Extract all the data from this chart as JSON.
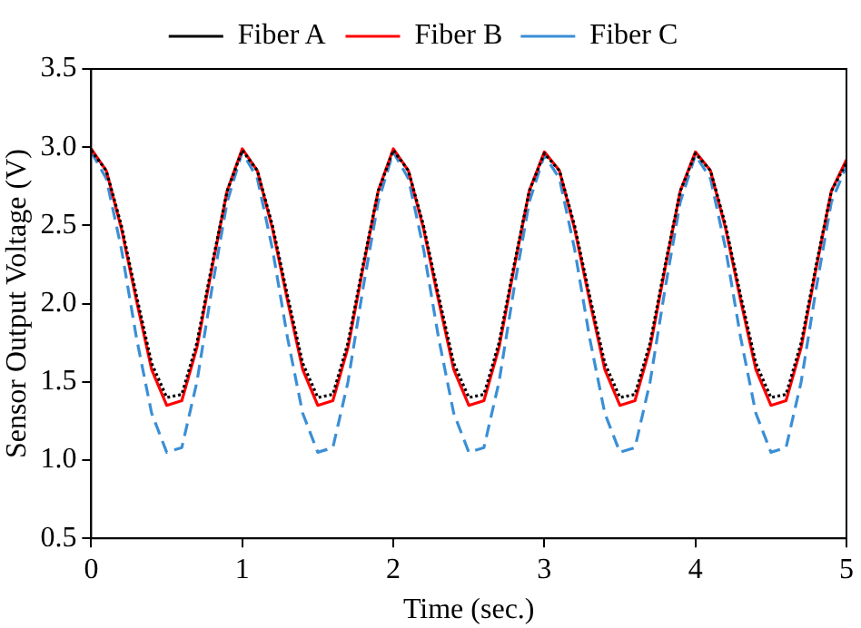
{
  "chart_data": {
    "type": "line",
    "xlabel": "Time (sec.)",
    "ylabel": "Sensor Output Voltage (V)",
    "x": [
      0,
      0.1,
      0.2,
      0.3,
      0.4,
      0.5,
      0.6,
      0.7,
      0.8,
      0.9,
      1,
      1.1,
      1.2,
      1.3,
      1.4,
      1.5,
      1.6,
      1.7,
      1.8,
      1.9,
      2,
      2.1,
      2.2,
      2.3,
      2.4,
      2.5,
      2.6,
      2.7,
      2.8,
      2.9,
      3,
      3.1,
      3.2,
      3.3,
      3.4,
      3.5,
      3.6,
      3.7,
      3.8,
      3.9,
      4,
      4.1,
      4.2,
      4.3,
      4.4,
      4.5,
      4.6,
      4.7,
      4.8,
      4.9,
      5
    ],
    "series": [
      {
        "name": "Fiber A",
        "color": "#000000",
        "line_style": "dotted",
        "values": [
          2.98,
          2.85,
          2.5,
          2.05,
          1.62,
          1.4,
          1.42,
          1.75,
          2.25,
          2.72,
          2.98,
          2.85,
          2.5,
          2.05,
          1.62,
          1.4,
          1.42,
          1.75,
          2.25,
          2.72,
          2.98,
          2.85,
          2.5,
          2.05,
          1.62,
          1.4,
          1.42,
          1.75,
          2.25,
          2.72,
          2.96,
          2.85,
          2.5,
          2.05,
          1.62,
          1.4,
          1.42,
          1.75,
          2.25,
          2.72,
          2.96,
          2.85,
          2.5,
          2.05,
          1.62,
          1.4,
          1.42,
          1.75,
          2.25,
          2.72,
          2.9
        ]
      },
      {
        "name": "Fiber B",
        "color": "#ff0000",
        "line_style": "solid",
        "values": [
          2.99,
          2.85,
          2.48,
          2.02,
          1.58,
          1.35,
          1.38,
          1.72,
          2.23,
          2.72,
          2.99,
          2.85,
          2.48,
          2.02,
          1.58,
          1.35,
          1.38,
          1.72,
          2.23,
          2.72,
          2.99,
          2.85,
          2.48,
          2.02,
          1.58,
          1.35,
          1.38,
          1.72,
          2.23,
          2.72,
          2.97,
          2.85,
          2.48,
          2.02,
          1.58,
          1.35,
          1.38,
          1.72,
          2.23,
          2.72,
          2.97,
          2.85,
          2.48,
          2.02,
          1.58,
          1.35,
          1.38,
          1.72,
          2.23,
          2.72,
          2.92
        ]
      },
      {
        "name": "Fiber C",
        "color": "#3a8fd6",
        "line_style": "dashed",
        "values": [
          2.97,
          2.8,
          2.35,
          1.78,
          1.3,
          1.05,
          1.08,
          1.5,
          2.1,
          2.65,
          2.97,
          2.8,
          2.35,
          1.78,
          1.3,
          1.05,
          1.08,
          1.5,
          2.1,
          2.65,
          2.97,
          2.8,
          2.35,
          1.78,
          1.3,
          1.05,
          1.08,
          1.5,
          2.1,
          2.65,
          2.95,
          2.8,
          2.35,
          1.78,
          1.3,
          1.05,
          1.08,
          1.5,
          2.1,
          2.65,
          2.95,
          2.8,
          2.35,
          1.78,
          1.3,
          1.05,
          1.08,
          1.5,
          2.1,
          2.65,
          2.88
        ]
      }
    ],
    "xlim": [
      0,
      5
    ],
    "xticks": [
      0,
      1,
      2,
      3,
      4,
      5
    ],
    "ylim": [
      0.5,
      3.5
    ],
    "yticks": [
      {
        "value": 0.5,
        "label": "0.5"
      },
      {
        "value": 1,
        "label": "1.0"
      },
      {
        "value": 1.5,
        "label": "1.5"
      },
      {
        "value": 2,
        "label": "2.0"
      },
      {
        "value": 2.5,
        "label": "2.5"
      },
      {
        "value": 3,
        "label": "3.0"
      },
      {
        "value": 3.5,
        "label": "3.5"
      }
    ],
    "grid": false,
    "legend": "top",
    "marker": "none"
  }
}
